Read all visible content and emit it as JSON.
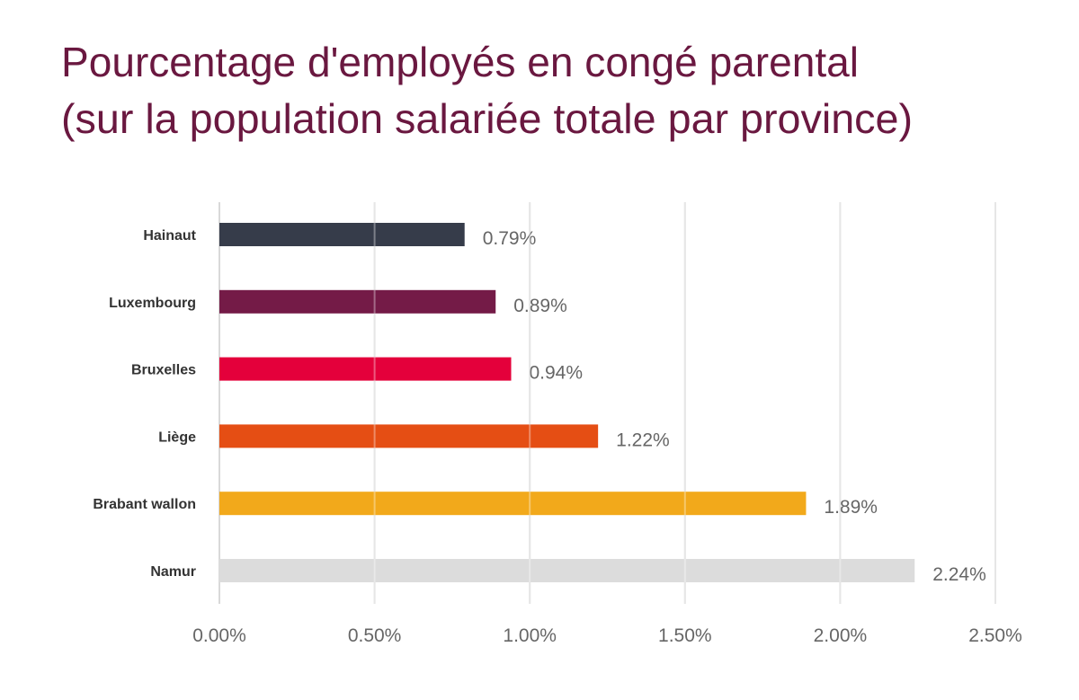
{
  "chart_data": {
    "type": "bar",
    "orientation": "horizontal",
    "title": [
      "Pourcentage d'employés en congé parental",
      "(sur la population salariée totale par province)"
    ],
    "categories": [
      "Hainaut",
      "Luxembourg",
      "Bruxelles",
      "Liège",
      "Brabant wallon",
      "Namur"
    ],
    "values": [
      0.79,
      0.89,
      0.94,
      1.22,
      1.89,
      2.24
    ],
    "value_labels": [
      "0.79%",
      "0.89%",
      "0.94%",
      "1.22%",
      "1.89%",
      "2.24%"
    ],
    "colors": [
      "#363c4a",
      "#741b47",
      "#e4003b",
      "#e54e14",
      "#f2a91b",
      "#dcdcdc"
    ],
    "xlim": [
      0,
      2.5
    ],
    "xticks": [
      0,
      0.5,
      1.0,
      1.5,
      2.0,
      2.5
    ],
    "xtick_labels": [
      "0.00%",
      "0.50%",
      "1.00%",
      "1.50%",
      "2.00%",
      "2.50%"
    ],
    "xlabel": "",
    "ylabel": "",
    "grid": true,
    "legend": "none"
  }
}
